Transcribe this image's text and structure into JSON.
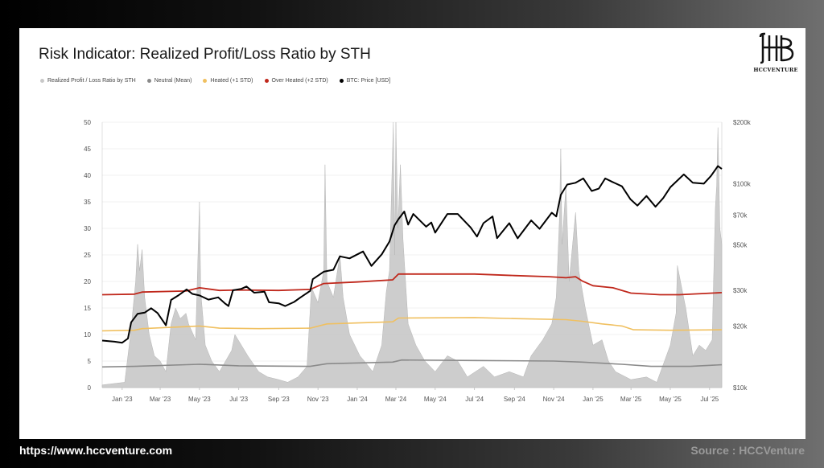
{
  "footer": {
    "website": "https://www.hccventure.com",
    "source": "Source : HCCVenture"
  },
  "logo": {
    "text": "HCCVENTURE"
  },
  "chart_data": {
    "type": "area",
    "title": "Risk Indicator: Realized Profit/Loss Ratio by STH",
    "legend": [
      {
        "name": "Realized Profit / Loss Ratio by STH",
        "color": "#c8c8c8"
      },
      {
        "name": "Neutral (Mean)",
        "color": "#8a8a8a"
      },
      {
        "name": "Heated (+1 STD)",
        "color": "#f0c060"
      },
      {
        "name": "Over Heated (+2 STD)",
        "color": "#c0281c"
      },
      {
        "name": "BTC: Price [USD]",
        "color": "#000000"
      }
    ],
    "legend_position": "top-left",
    "x_ticks": [
      "Jan '23",
      "Mar '23",
      "May '23",
      "Jul '23",
      "Sep '23",
      "Nov '23",
      "Jan '24",
      "Mar '24",
      "May '24",
      "Jul '24",
      "Sep '24",
      "Nov '24",
      "Jan '25",
      "Mar '25",
      "May '25",
      "Jul '25"
    ],
    "x_range": [
      "2022-12-01",
      "2025-07-20"
    ],
    "y_left": {
      "ticks": [
        0,
        5,
        10,
        15,
        20,
        25,
        30,
        35,
        40,
        45,
        50
      ],
      "ylim": [
        0,
        50
      ]
    },
    "y_right": {
      "scale": "log",
      "ticks": [
        "$10k",
        "$20k",
        "$30k",
        "$50k",
        "$70k",
        "$100k",
        "$200k"
      ],
      "tick_values": [
        10000,
        20000,
        30000,
        50000,
        70000,
        100000,
        200000
      ],
      "ylim": [
        10000,
        200000
      ]
    },
    "grid": true,
    "series": [
      {
        "name": "BTC: Price [USD]",
        "axis": "right",
        "color": "#000000",
        "points": [
          [
            "2022-12-01",
            17000
          ],
          [
            "2022-12-20",
            16800
          ],
          [
            "2023-01-01",
            16600
          ],
          [
            "2023-01-10",
            17400
          ],
          [
            "2023-01-15",
            20900
          ],
          [
            "2023-01-25",
            23000
          ],
          [
            "2023-02-05",
            23300
          ],
          [
            "2023-02-15",
            24500
          ],
          [
            "2023-02-25",
            23200
          ],
          [
            "2023-03-10",
            20200
          ],
          [
            "2023-03-18",
            26900
          ],
          [
            "2023-03-30",
            28400
          ],
          [
            "2023-04-11",
            30300
          ],
          [
            "2023-04-20",
            28800
          ],
          [
            "2023-05-01",
            28300
          ],
          [
            "2023-05-15",
            27000
          ],
          [
            "2023-05-30",
            27700
          ],
          [
            "2023-06-10",
            25800
          ],
          [
            "2023-06-15",
            25100
          ],
          [
            "2023-06-22",
            30000
          ],
          [
            "2023-07-05",
            30500
          ],
          [
            "2023-07-13",
            31300
          ],
          [
            "2023-07-25",
            29200
          ],
          [
            "2023-08-10",
            29500
          ],
          [
            "2023-08-17",
            26200
          ],
          [
            "2023-09-01",
            25900
          ],
          [
            "2023-09-11",
            25100
          ],
          [
            "2023-09-25",
            26300
          ],
          [
            "2023-10-05",
            27700
          ],
          [
            "2023-10-20",
            29800
          ],
          [
            "2023-10-24",
            34000
          ],
          [
            "2023-11-10",
            37000
          ],
          [
            "2023-11-25",
            37800
          ],
          [
            "2023-12-05",
            44000
          ],
          [
            "2023-12-20",
            43000
          ],
          [
            "2024-01-10",
            46500
          ],
          [
            "2024-01-23",
            39500
          ],
          [
            "2024-02-08",
            45000
          ],
          [
            "2024-02-20",
            52000
          ],
          [
            "2024-02-28",
            62500
          ],
          [
            "2024-03-05",
            67000
          ],
          [
            "2024-03-14",
            73000
          ],
          [
            "2024-03-20",
            63000
          ],
          [
            "2024-03-28",
            71000
          ],
          [
            "2024-04-17",
            61500
          ],
          [
            "2024-04-25",
            64500
          ],
          [
            "2024-05-01",
            57500
          ],
          [
            "2024-05-20",
            71000
          ],
          [
            "2024-06-05",
            71000
          ],
          [
            "2024-06-25",
            61000
          ],
          [
            "2024-07-05",
            55000
          ],
          [
            "2024-07-15",
            64000
          ],
          [
            "2024-07-29",
            69000
          ],
          [
            "2024-08-05",
            54000
          ],
          [
            "2024-08-24",
            64000
          ],
          [
            "2024-09-06",
            53900
          ],
          [
            "2024-09-27",
            66000
          ],
          [
            "2024-10-10",
            60000
          ],
          [
            "2024-10-29",
            72000
          ],
          [
            "2024-11-05",
            69000
          ],
          [
            "2024-11-12",
            88000
          ],
          [
            "2024-11-22",
            99000
          ],
          [
            "2024-12-05",
            101000
          ],
          [
            "2024-12-17",
            106000
          ],
          [
            "2024-12-30",
            92000
          ],
          [
            "2025-01-10",
            94500
          ],
          [
            "2025-01-20",
            106000
          ],
          [
            "2025-01-31",
            102000
          ],
          [
            "2025-02-15",
            97000
          ],
          [
            "2025-02-28",
            84000
          ],
          [
            "2025-03-11",
            78000
          ],
          [
            "2025-03-25",
            87000
          ],
          [
            "2025-04-08",
            77000
          ],
          [
            "2025-04-20",
            85000
          ],
          [
            "2025-05-01",
            96000
          ],
          [
            "2025-05-22",
            111000
          ],
          [
            "2025-06-05",
            101000
          ],
          [
            "2025-06-22",
            100000
          ],
          [
            "2025-07-03",
            109000
          ],
          [
            "2025-07-14",
            122000
          ],
          [
            "2025-07-20",
            118000
          ]
        ]
      },
      {
        "name": "Over Heated (+2 STD)",
        "axis": "left",
        "color": "#c0281c",
        "points": [
          [
            "2022-12-01",
            17.5
          ],
          [
            "2023-01-20",
            17.6
          ],
          [
            "2023-02-01",
            18.0
          ],
          [
            "2023-04-10",
            18.2
          ],
          [
            "2023-05-01",
            18.8
          ],
          [
            "2023-06-01",
            18.3
          ],
          [
            "2023-07-01",
            18.4
          ],
          [
            "2023-09-01",
            18.3
          ],
          [
            "2023-10-20",
            18.5
          ],
          [
            "2023-11-10",
            19.6
          ],
          [
            "2023-12-31",
            19.9
          ],
          [
            "2024-02-25",
            20.3
          ],
          [
            "2024-03-05",
            21.4
          ],
          [
            "2024-07-01",
            21.4
          ],
          [
            "2024-09-01",
            21.1
          ],
          [
            "2024-10-25",
            20.9
          ],
          [
            "2024-11-20",
            20.7
          ],
          [
            "2024-12-05",
            20.9
          ],
          [
            "2024-12-15",
            20.1
          ],
          [
            "2025-01-01",
            19.2
          ],
          [
            "2025-02-01",
            18.8
          ],
          [
            "2025-03-01",
            17.8
          ],
          [
            "2025-04-15",
            17.5
          ],
          [
            "2025-05-15",
            17.5
          ],
          [
            "2025-07-20",
            17.9
          ]
        ]
      },
      {
        "name": "Heated (+1 STD)",
        "axis": "left",
        "color": "#f0c060",
        "points": [
          [
            "2022-12-01",
            10.7
          ],
          [
            "2023-01-20",
            10.8
          ],
          [
            "2023-02-01",
            11.1
          ],
          [
            "2023-05-01",
            11.6
          ],
          [
            "2023-06-01",
            11.2
          ],
          [
            "2023-08-01",
            11.1
          ],
          [
            "2023-10-20",
            11.2
          ],
          [
            "2023-11-15",
            12.0
          ],
          [
            "2024-02-25",
            12.4
          ],
          [
            "2024-03-05",
            13.1
          ],
          [
            "2024-07-01",
            13.2
          ],
          [
            "2024-09-01",
            13.0
          ],
          [
            "2024-11-20",
            12.8
          ],
          [
            "2024-12-15",
            12.5
          ],
          [
            "2025-01-15",
            12.0
          ],
          [
            "2025-02-15",
            11.6
          ],
          [
            "2025-03-05",
            10.9
          ],
          [
            "2025-05-01",
            10.8
          ],
          [
            "2025-07-20",
            10.9
          ]
        ]
      },
      {
        "name": "Neutral (Mean)",
        "axis": "left",
        "color": "#8a8a8a",
        "points": [
          [
            "2022-12-01",
            3.9
          ],
          [
            "2023-01-20",
            4.0
          ],
          [
            "2023-05-01",
            4.4
          ],
          [
            "2023-07-01",
            4.1
          ],
          [
            "2023-10-20",
            4.0
          ],
          [
            "2023-11-15",
            4.5
          ],
          [
            "2024-02-25",
            4.8
          ],
          [
            "2024-03-10",
            5.2
          ],
          [
            "2024-07-01",
            5.1
          ],
          [
            "2024-11-01",
            5.0
          ],
          [
            "2024-12-15",
            4.8
          ],
          [
            "2025-02-15",
            4.4
          ],
          [
            "2025-04-01",
            4.0
          ],
          [
            "2025-06-01",
            4.0
          ],
          [
            "2025-07-20",
            4.3
          ]
        ]
      },
      {
        "name": "Realized Profit / Loss Ratio by STH",
        "axis": "left",
        "color": "#c8c8c8",
        "points": [
          [
            "2022-12-01",
            0.5
          ],
          [
            "2023-01-05",
            1
          ],
          [
            "2023-01-14",
            10
          ],
          [
            "2023-01-18",
            15
          ],
          [
            "2023-01-22",
            20
          ],
          [
            "2023-01-25",
            27
          ],
          [
            "2023-01-28",
            22
          ],
          [
            "2023-02-01",
            26
          ],
          [
            "2023-02-05",
            17
          ],
          [
            "2023-02-12",
            10
          ],
          [
            "2023-02-20",
            6
          ],
          [
            "2023-03-01",
            5
          ],
          [
            "2023-03-10",
            3
          ],
          [
            "2023-03-18",
            12
          ],
          [
            "2023-03-25",
            15
          ],
          [
            "2023-04-01",
            13
          ],
          [
            "2023-04-10",
            14
          ],
          [
            "2023-04-14",
            12
          ],
          [
            "2023-04-25",
            9
          ],
          [
            "2023-05-01",
            35
          ],
          [
            "2023-05-03",
            18
          ],
          [
            "2023-05-10",
            8
          ],
          [
            "2023-05-20",
            5
          ],
          [
            "2023-06-01",
            3
          ],
          [
            "2023-06-20",
            7
          ],
          [
            "2023-06-25",
            10
          ],
          [
            "2023-07-05",
            8
          ],
          [
            "2023-07-15",
            6
          ],
          [
            "2023-08-01",
            3
          ],
          [
            "2023-08-15",
            2
          ],
          [
            "2023-09-01",
            1.5
          ],
          [
            "2023-09-15",
            1
          ],
          [
            "2023-10-01",
            2
          ],
          [
            "2023-10-15",
            4
          ],
          [
            "2023-10-22",
            19
          ],
          [
            "2023-10-25",
            18
          ],
          [
            "2023-11-01",
            16
          ],
          [
            "2023-11-10",
            22
          ],
          [
            "2023-11-12",
            42
          ],
          [
            "2023-11-15",
            20
          ],
          [
            "2023-11-25",
            17
          ],
          [
            "2023-12-05",
            25
          ],
          [
            "2023-12-10",
            17
          ],
          [
            "2023-12-20",
            10
          ],
          [
            "2024-01-05",
            6
          ],
          [
            "2024-01-12",
            5
          ],
          [
            "2024-01-25",
            3
          ],
          [
            "2024-02-08",
            8
          ],
          [
            "2024-02-15",
            18
          ],
          [
            "2024-02-20",
            22
          ],
          [
            "2024-02-26",
            50
          ],
          [
            "2024-02-28",
            25
          ],
          [
            "2024-03-01",
            50
          ],
          [
            "2024-03-04",
            30
          ],
          [
            "2024-03-08",
            42
          ],
          [
            "2024-03-12",
            28
          ],
          [
            "2024-03-20",
            12
          ],
          [
            "2024-04-01",
            8
          ],
          [
            "2024-04-15",
            5
          ],
          [
            "2024-05-01",
            3
          ],
          [
            "2024-05-20",
            6
          ],
          [
            "2024-06-05",
            5
          ],
          [
            "2024-06-20",
            2
          ],
          [
            "2024-07-15",
            4
          ],
          [
            "2024-08-01",
            2
          ],
          [
            "2024-08-24",
            3
          ],
          [
            "2024-09-15",
            2
          ],
          [
            "2024-09-27",
            6
          ],
          [
            "2024-10-15",
            9
          ],
          [
            "2024-10-29",
            12
          ],
          [
            "2024-11-05",
            17
          ],
          [
            "2024-11-10",
            32
          ],
          [
            "2024-11-12",
            45
          ],
          [
            "2024-11-14",
            27
          ],
          [
            "2024-11-20",
            38
          ],
          [
            "2024-11-25",
            20
          ],
          [
            "2024-12-05",
            33
          ],
          [
            "2024-12-10",
            22
          ],
          [
            "2024-12-20",
            15
          ],
          [
            "2025-01-01",
            8
          ],
          [
            "2025-01-15",
            9
          ],
          [
            "2025-01-25",
            5
          ],
          [
            "2025-02-05",
            3
          ],
          [
            "2025-03-01",
            1.5
          ],
          [
            "2025-03-25",
            2
          ],
          [
            "2025-04-10",
            1
          ],
          [
            "2025-04-25",
            6
          ],
          [
            "2025-05-01",
            8
          ],
          [
            "2025-05-10",
            14
          ],
          [
            "2025-05-12",
            23
          ],
          [
            "2025-05-20",
            18
          ],
          [
            "2025-05-25",
            15
          ],
          [
            "2025-06-05",
            6
          ],
          [
            "2025-06-15",
            8
          ],
          [
            "2025-06-25",
            7
          ],
          [
            "2025-07-05",
            9
          ],
          [
            "2025-07-10",
            34
          ],
          [
            "2025-07-12",
            38
          ],
          [
            "2025-07-14",
            49
          ],
          [
            "2025-07-17",
            30
          ],
          [
            "2025-07-20",
            27
          ]
        ]
      }
    ]
  }
}
